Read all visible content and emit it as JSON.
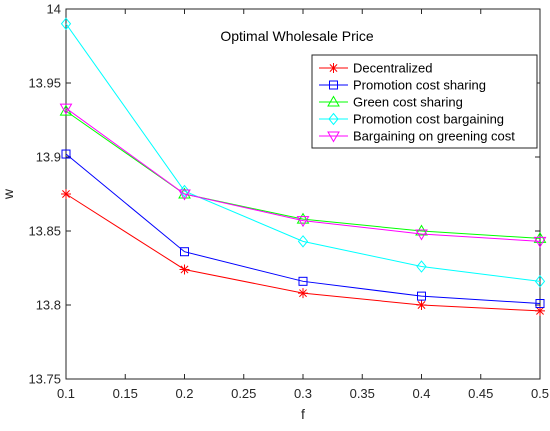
{
  "chart_data": {
    "type": "line",
    "title": "Optimal Wholesale Price",
    "xlabel": "f",
    "ylabel": "w",
    "x": [
      0.1,
      0.2,
      0.3,
      0.4,
      0.5
    ],
    "xlim": [
      0.1,
      0.5
    ],
    "ylim": [
      13.75,
      14.0
    ],
    "xticks": [
      "0.1",
      "0.15",
      "0.2",
      "0.25",
      "0.3",
      "0.35",
      "0.4",
      "0.45",
      "0.5"
    ],
    "yticks": [
      "13.75",
      "13.8",
      "13.85",
      "13.9",
      "13.95",
      "14"
    ],
    "grid": false,
    "legend_position": "top-right",
    "series": [
      {
        "name": "Decentralized",
        "color": "#ff0000",
        "marker": "asterisk",
        "values": [
          13.875,
          13.824,
          13.808,
          13.8,
          13.796
        ]
      },
      {
        "name": "Promotion cost sharing",
        "color": "#0000ff",
        "marker": "square",
        "values": [
          13.902,
          13.836,
          13.816,
          13.806,
          13.801
        ]
      },
      {
        "name": "Green cost sharing",
        "color": "#00ff00",
        "marker": "triangle-up",
        "values": [
          13.931,
          13.875,
          13.858,
          13.85,
          13.845
        ]
      },
      {
        "name": "Promotion cost bargaining",
        "color": "#00ffff",
        "marker": "diamond",
        "values": [
          13.99,
          13.877,
          13.843,
          13.826,
          13.816
        ]
      },
      {
        "name": "Bargaining on greening cost",
        "color": "#ff00ff",
        "marker": "triangle-down",
        "values": [
          13.933,
          13.875,
          13.857,
          13.848,
          13.843
        ]
      }
    ]
  }
}
